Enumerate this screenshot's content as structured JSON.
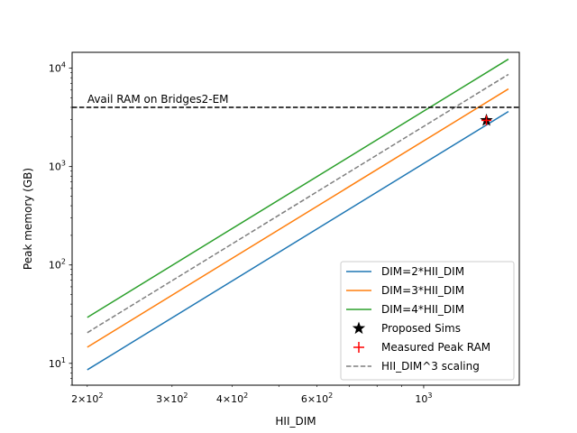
{
  "chart_data": {
    "type": "line",
    "title": "",
    "xlabel": "HII_DIM",
    "ylabel": "Peak memory (GB)",
    "xscale": "log",
    "yscale": "log",
    "xlim": [
      186,
      1580
    ],
    "ylim": [
      6.0,
      14500
    ],
    "grid": false,
    "legend_position": "lower-right",
    "x_tick_labels": [
      {
        "value": 200,
        "base": "2",
        "exp": "2"
      },
      {
        "value": 300,
        "base": "3",
        "exp": "2"
      },
      {
        "value": 400,
        "base": "4",
        "exp": "2"
      },
      {
        "value": 600,
        "base": "6",
        "exp": "2"
      },
      {
        "value": 1000,
        "base": "",
        "exp": "3"
      }
    ],
    "y_tick_labels": [
      {
        "value": 10,
        "exp": "1"
      },
      {
        "value": 100,
        "exp": "2"
      },
      {
        "value": 1000,
        "exp": "3"
      },
      {
        "value": 10000,
        "exp": "4"
      }
    ],
    "series": [
      {
        "name": "DIM=2*HII_DIM",
        "color": "#1f77b4",
        "style": "solid",
        "x": [
          200,
          1500
        ],
        "y": [
          8.6,
          3630
        ]
      },
      {
        "name": "DIM=3*HII_DIM",
        "color": "#ff7f0e",
        "style": "solid",
        "x": [
          200,
          1500
        ],
        "y": [
          14.6,
          6160
        ]
      },
      {
        "name": "DIM=4*HII_DIM",
        "color": "#2ca02c",
        "style": "solid",
        "x": [
          200,
          1500
        ],
        "y": [
          29.3,
          12360
        ]
      },
      {
        "name": "HII_DIM^3 scaling",
        "color": "#7f7f7f",
        "style": "dashed",
        "x": [
          200,
          1500
        ],
        "y": [
          20.5,
          8650
        ]
      }
    ],
    "points": [
      {
        "name": "Proposed Sims",
        "marker": "star",
        "color": "#000000",
        "x": 1350,
        "y": 2950
      },
      {
        "name": "Measured Peak RAM",
        "marker": "plus",
        "color": "#ff0000",
        "x": 1350,
        "y": 2950
      }
    ],
    "hline": {
      "y": 4000,
      "color": "#000000",
      "style": "dashed",
      "label": "Avail RAM on Bridges2-EM"
    },
    "legend_order": [
      {
        "name": "DIM=2*HII_DIM",
        "kind": "line",
        "color": "#1f77b4",
        "style": "solid"
      },
      {
        "name": "DIM=3*HII_DIM",
        "kind": "line",
        "color": "#ff7f0e",
        "style": "solid"
      },
      {
        "name": "DIM=4*HII_DIM",
        "kind": "line",
        "color": "#2ca02c",
        "style": "solid"
      },
      {
        "name": "Proposed Sims",
        "kind": "star",
        "color": "#000000"
      },
      {
        "name": "Measured Peak RAM",
        "kind": "plus",
        "color": "#ff0000"
      },
      {
        "name": "HII_DIM^3 scaling",
        "kind": "line",
        "color": "#7f7f7f",
        "style": "dashed"
      }
    ]
  }
}
